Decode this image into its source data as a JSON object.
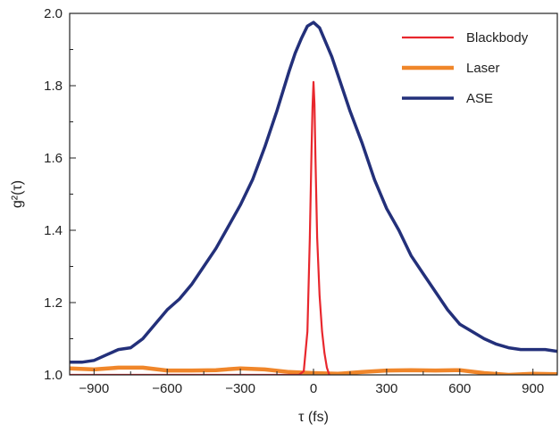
{
  "chart_data": {
    "type": "line",
    "title": "",
    "xlabel": "τ (fs)",
    "ylabel": "g²(τ)",
    "xlim": [
      -1000,
      1000
    ],
    "ylim": [
      1.0,
      2.0
    ],
    "x_ticks": [
      -900,
      -600,
      -300,
      0,
      300,
      600,
      900
    ],
    "x_tick_labels": [
      "−900",
      "−600",
      "−300",
      "0",
      "300",
      "600",
      "900"
    ],
    "y_ticks": [
      1.0,
      1.2,
      1.4,
      1.6,
      1.8,
      2.0
    ],
    "y_tick_labels": [
      "1.0",
      "1.2",
      "1.4",
      "1.6",
      "1.8",
      "2.0"
    ],
    "grid": false,
    "legend_position": "top-right",
    "series": [
      {
        "name": "Blackbody",
        "color": "#e8272d",
        "x": [
          -1000,
          -100,
          -60,
          -40,
          -25,
          -15,
          -8,
          -4,
          0,
          4,
          8,
          15,
          25,
          35,
          45,
          55,
          65
        ],
        "y": [
          1.0,
          1.0,
          1.0,
          1.01,
          1.12,
          1.38,
          1.62,
          1.74,
          1.81,
          1.75,
          1.6,
          1.38,
          1.22,
          1.12,
          1.06,
          1.02,
          1.0
        ]
      },
      {
        "name": "Laser",
        "color": "#f0862a",
        "x": [
          -1000,
          -900,
          -800,
          -700,
          -600,
          -500,
          -400,
          -300,
          -200,
          -100,
          0,
          100,
          200,
          300,
          400,
          500,
          600,
          700,
          800,
          900,
          1000
        ],
        "y": [
          1.018,
          1.015,
          1.02,
          1.02,
          1.012,
          1.012,
          1.013,
          1.018,
          1.015,
          1.008,
          1.005,
          1.003,
          1.008,
          1.012,
          1.013,
          1.012,
          1.013,
          1.005,
          1.0,
          1.003,
          1.002
        ]
      },
      {
        "name": "ASE",
        "color": "#23307a",
        "x": [
          -1000,
          -950,
          -900,
          -850,
          -800,
          -750,
          -700,
          -650,
          -600,
          -550,
          -500,
          -450,
          -400,
          -350,
          -300,
          -250,
          -200,
          -150,
          -100,
          -75,
          -50,
          -25,
          0,
          25,
          50,
          75,
          100,
          150,
          200,
          250,
          300,
          350,
          400,
          450,
          500,
          550,
          600,
          650,
          700,
          750,
          800,
          850,
          900,
          950,
          1000
        ],
        "y": [
          1.035,
          1.035,
          1.04,
          1.055,
          1.07,
          1.075,
          1.1,
          1.14,
          1.18,
          1.21,
          1.25,
          1.3,
          1.35,
          1.41,
          1.47,
          1.54,
          1.63,
          1.73,
          1.84,
          1.89,
          1.93,
          1.965,
          1.975,
          1.96,
          1.92,
          1.88,
          1.83,
          1.73,
          1.64,
          1.54,
          1.46,
          1.4,
          1.33,
          1.28,
          1.23,
          1.18,
          1.14,
          1.12,
          1.1,
          1.085,
          1.075,
          1.07,
          1.07,
          1.07,
          1.065
        ]
      }
    ]
  }
}
